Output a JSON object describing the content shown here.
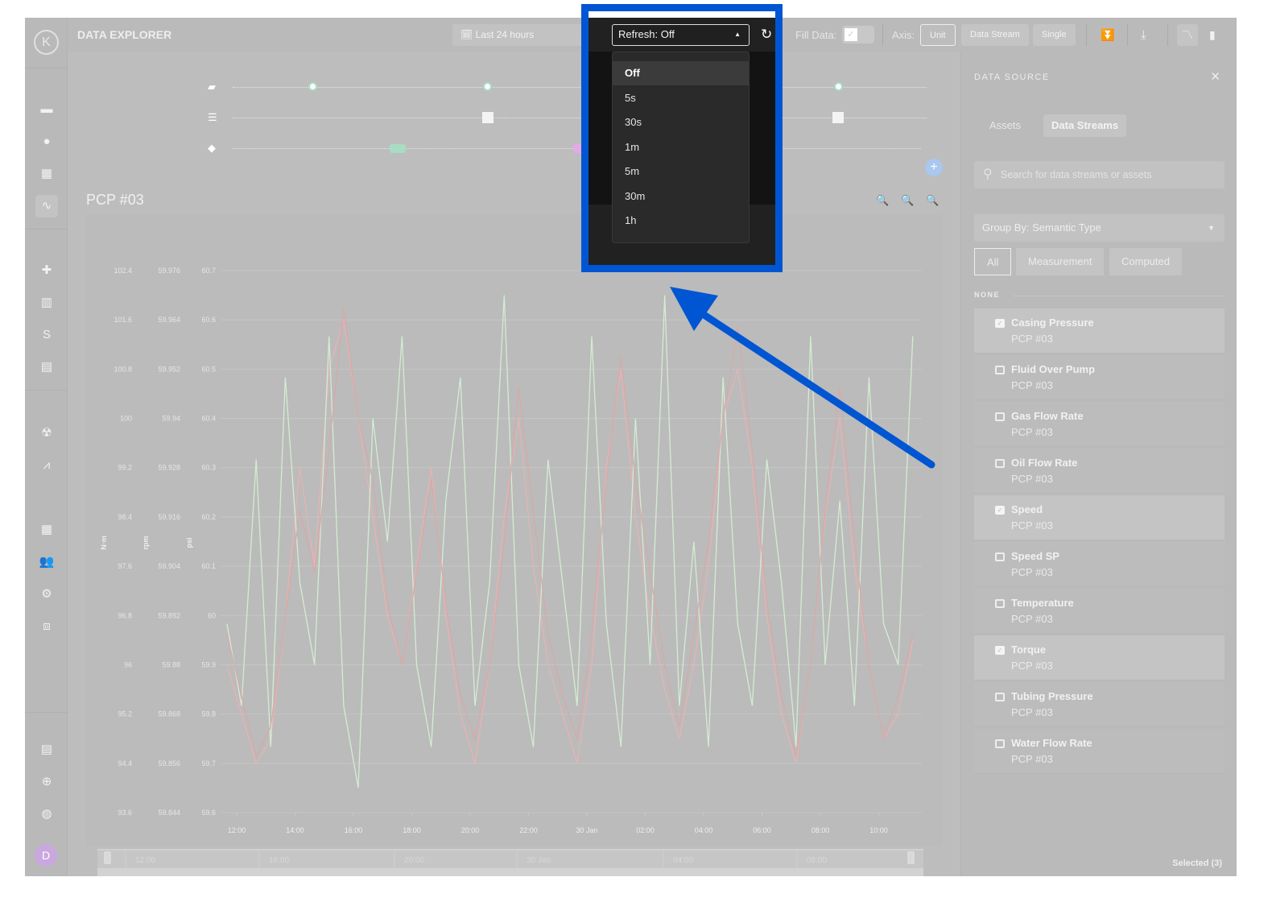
{
  "app": {
    "title": "DATA EXPLORER",
    "logo_letter": "K",
    "user_initial": "D"
  },
  "toolbar": {
    "time_range": "Last 24 hours",
    "refresh_label": "Refresh: Off",
    "fill_data_label": "Fill Data:",
    "fill_data_checked": true,
    "axis_label": "Axis:",
    "axis_options": [
      "Unit",
      "Data Stream",
      "Single"
    ],
    "axis_selected": "Unit"
  },
  "refresh_menu": {
    "options": [
      "Off",
      "5s",
      "30s",
      "1m",
      "5m",
      "30m",
      "1h"
    ],
    "selected": "Off"
  },
  "sidebar": {
    "icons": [
      "calendar-icon",
      "globe-icon",
      "widgets-icon",
      "activity-icon",
      "puzzle-icon",
      "bar-chart-icon",
      "route-icon",
      "barrier-icon",
      "radioactive-icon",
      "line-chart-icon",
      "dashboard-icon",
      "users-icon",
      "user-settings-icon",
      "code-icon",
      "document-icon",
      "support-icon",
      "world-icon"
    ],
    "active": "activity-icon"
  },
  "timeline": {
    "rows": [
      "comments-icon",
      "sliders-icon",
      "tag-icon"
    ],
    "tag_colors": [
      "#a8dcc4",
      "#e6a8e6"
    ]
  },
  "chart_title": "PCP #03",
  "chart_data": {
    "type": "line",
    "title": "",
    "xlabel": "",
    "x_ticks": [
      "12:00",
      "14:00",
      "16:00",
      "18:00",
      "20:00",
      "22:00",
      "30 Jan",
      "02:00",
      "04:00",
      "06:00",
      "08:00",
      "10:00"
    ],
    "x": [
      "11:40",
      "12:10",
      "12:40",
      "13:10",
      "13:40",
      "14:10",
      "14:40",
      "15:10",
      "15:40",
      "16:10",
      "16:40",
      "17:10",
      "17:40",
      "18:10",
      "18:40",
      "19:10",
      "19:40",
      "20:10",
      "20:40",
      "21:10",
      "21:40",
      "22:10",
      "22:40",
      "23:10",
      "23:40",
      "00:10",
      "00:40",
      "01:10",
      "01:40",
      "02:10",
      "02:40",
      "03:10",
      "03:40",
      "04:10",
      "04:40",
      "05:10",
      "05:40",
      "06:10",
      "06:40",
      "07:10",
      "07:40",
      "08:10",
      "08:40",
      "09:10",
      "09:40",
      "10:10",
      "10:40",
      "11:10"
    ],
    "axes": [
      {
        "unit": "N·m",
        "range": [
          93.6,
          102.4
        ],
        "ticks": [
          "102.4",
          "101.6",
          "100.8",
          "100",
          "99.2",
          "98.4",
          "97.6",
          "96.8",
          "96",
          "95.2",
          "94.4",
          "93.6"
        ]
      },
      {
        "unit": "rpm",
        "range": [
          59.844,
          59.976
        ],
        "ticks": [
          "59.976",
          "59.964",
          "59.952",
          "59.94",
          "59.928",
          "59.916",
          "59.904",
          "59.892",
          "59.88",
          "59.868",
          "59.856",
          "59.844"
        ]
      },
      {
        "unit": "psi",
        "range": [
          59.6,
          60.7
        ],
        "ticks": [
          "60.7",
          "60.6",
          "60.5",
          "60.4",
          "60.3",
          "60.2",
          "60.1",
          "60",
          "59.9",
          "59.8",
          "59.7",
          "59.6"
        ]
      }
    ],
    "grid": true,
    "legend_placement": "bottom",
    "series": [
      {
        "name": "Casing Pressure | PCP #03 (psi)",
        "axis": 2,
        "color": "#e6b3b3",
        "values": [
          59.9,
          59.8,
          59.7,
          59.75,
          60.0,
          60.3,
          60.1,
          60.5,
          60.6,
          60.4,
          60.2,
          60.0,
          59.9,
          60.1,
          60.3,
          60.0,
          59.8,
          59.7,
          59.9,
          60.2,
          60.4,
          60.1,
          59.9,
          59.8,
          59.7,
          59.9,
          60.3,
          60.5,
          60.2,
          60.0,
          59.85,
          59.75,
          59.9,
          60.1,
          60.4,
          60.5,
          60.3,
          60.0,
          59.8,
          59.7,
          59.9,
          60.2,
          60.4,
          60.1,
          59.9,
          59.75,
          59.8,
          59.95
        ]
      },
      {
        "name": "Speed | PCP #03 (rpm)",
        "axis": 1,
        "color": "#d4ecd2",
        "values": [
          59.89,
          59.87,
          59.93,
          59.86,
          59.95,
          59.9,
          59.88,
          59.96,
          59.87,
          59.85,
          59.94,
          59.91,
          59.96,
          59.88,
          59.86,
          59.92,
          59.95,
          59.87,
          59.9,
          59.97,
          59.88,
          59.86,
          59.93,
          59.9,
          59.87,
          59.96,
          59.89,
          59.86,
          59.94,
          59.88,
          59.97,
          59.87,
          59.91,
          59.86,
          59.95,
          59.89,
          59.87,
          59.93,
          59.9,
          59.86,
          59.96,
          59.88,
          59.92,
          59.87,
          59.95,
          59.89,
          59.88,
          59.96
        ]
      },
      {
        "name": "Torque | PCP #03 (N·m)",
        "axis": 0,
        "color": "#d8a9a9",
        "values": [
          96.5,
          95.5,
          94.5,
          95.0,
          96.8,
          98.5,
          97.5,
          99.5,
          101.8,
          100.0,
          99.0,
          97.0,
          96.0,
          97.5,
          99.0,
          97.0,
          95.5,
          94.8,
          96.0,
          98.0,
          100.5,
          98.5,
          96.5,
          95.5,
          94.8,
          96.5,
          99.0,
          101.0,
          99.0,
          97.5,
          96.0,
          95.0,
          96.5,
          98.0,
          100.0,
          101.5,
          99.5,
          97.0,
          95.5,
          94.5,
          96.0,
          98.5,
          100.5,
          98.0,
          96.0,
          94.8,
          95.5,
          96.5
        ]
      }
    ],
    "navigator_ticks": [
      "12:00",
      "16:00",
      "20:00",
      "30 Jan",
      "04:00",
      "08:00"
    ]
  },
  "data_source": {
    "title": "DATA SOURCE",
    "tabs": [
      "Assets",
      "Data Streams"
    ],
    "active_tab": "Data Streams",
    "search_placeholder": "Search for data streams or assets",
    "group_by": "Group By: Semantic Type",
    "filters": [
      "All",
      "Measurement",
      "Computed"
    ],
    "active_filter": "All",
    "group_header": "NONE",
    "items": [
      {
        "name": "Casing Pressure",
        "asset": "PCP #03",
        "checked": true
      },
      {
        "name": "Fluid Over Pump",
        "asset": "PCP #03",
        "checked": false
      },
      {
        "name": "Gas Flow Rate",
        "asset": "PCP #03",
        "checked": false
      },
      {
        "name": "Oil Flow Rate",
        "asset": "PCP #03",
        "checked": false
      },
      {
        "name": "Speed",
        "asset": "PCP #03",
        "checked": true
      },
      {
        "name": "Speed SP",
        "asset": "PCP #03",
        "checked": false
      },
      {
        "name": "Temperature",
        "asset": "PCP #03",
        "checked": false
      },
      {
        "name": "Torque",
        "asset": "PCP #03",
        "checked": true
      },
      {
        "name": "Tubing Pressure",
        "asset": "PCP #03",
        "checked": false
      },
      {
        "name": "Water Flow Rate",
        "asset": "PCP #03",
        "checked": false
      }
    ],
    "selected_count": "Selected (3)"
  },
  "annotation": {
    "highlight_color": "#0056d2"
  }
}
